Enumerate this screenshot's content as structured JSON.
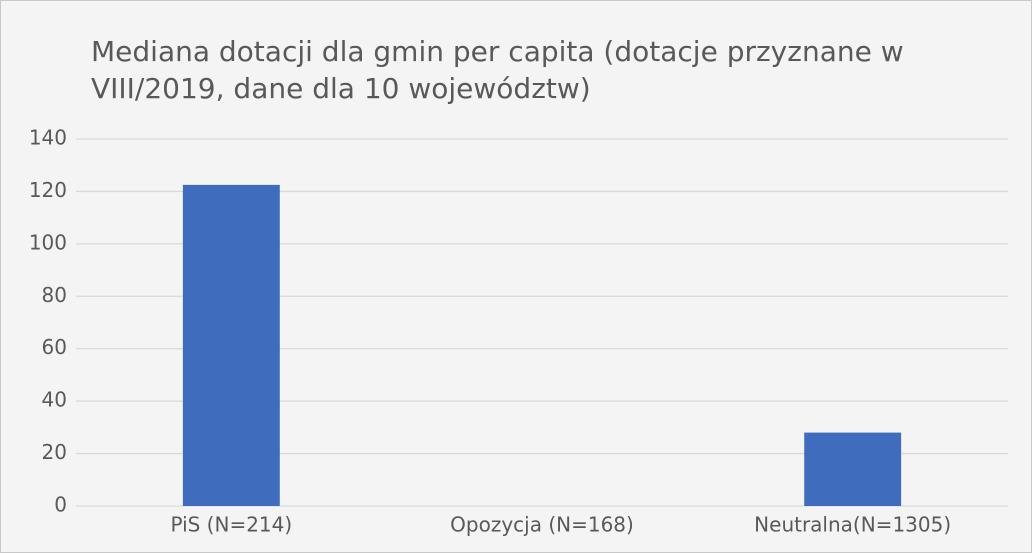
{
  "chart_data": {
    "type": "bar",
    "title": "Mediana dotacji dla gmin per capita (dotacje przyznane w VIII/2019, dane dla 10 województw)",
    "categories": [
      "PiS (N=214)",
      "Opozycja (N=168)",
      "Neutralna(N=1305)"
    ],
    "values": [
      122.5,
      0,
      28
    ],
    "color": "#3f6cbc",
    "ylim": [
      0,
      140
    ],
    "yticks": [
      0,
      20,
      40,
      60,
      80,
      100,
      120,
      140
    ],
    "grid": true
  }
}
